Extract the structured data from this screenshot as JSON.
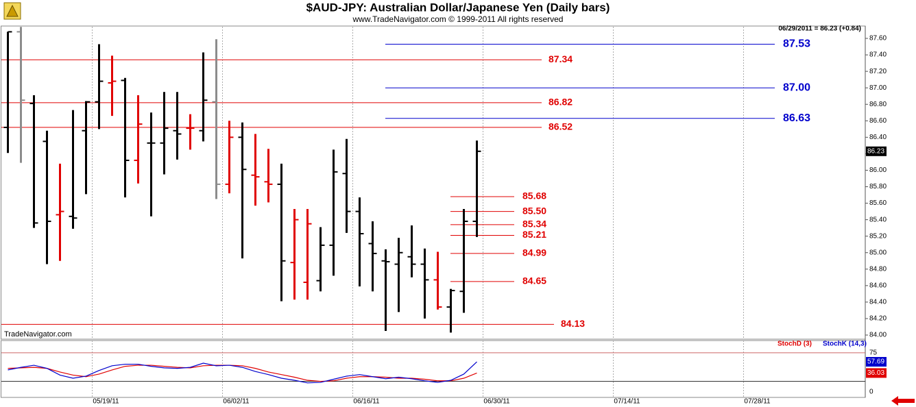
{
  "chart_data": [
    {
      "type": "ohlc",
      "title": "$AUD-JPY:  Australian Dollar/Japanese Yen  (Daily bars)",
      "subtitle": "www.TradeNavigator.com © 1999-2011 All rights reserved",
      "watermark": "TradeNavigator.com",
      "header_text": "06/29/2011 = 86.23 (+0.84)",
      "categories": [
        null,
        null,
        null,
        null,
        null,
        null,
        null,
        "05/19/11",
        null,
        null,
        null,
        null,
        null,
        null,
        null,
        null,
        null,
        "06/02/11",
        null,
        null,
        null,
        null,
        null,
        null,
        null,
        null,
        null,
        "06/16/11",
        null,
        null,
        null,
        null,
        null,
        null,
        null,
        null,
        null,
        "06/30/11",
        null,
        null,
        null,
        null,
        null,
        null,
        null,
        null,
        null,
        "07/14/11",
        null,
        null,
        null,
        null,
        null,
        null,
        null,
        null,
        null,
        "07/28/11",
        null,
        null,
        null,
        null,
        null,
        null,
        null,
        null
      ],
      "open": [
        86.52,
        87.68,
        86.81,
        86.35,
        85.46,
        85.44,
        86.48,
        86.83,
        87.06,
        87.09,
        86.12,
        86.33,
        86.33,
        86.48,
        86.51,
        86.48,
        86.83,
        85.83,
        86.4,
        85.94,
        85.86,
        85.83,
        84.88,
        84.64,
        84.66,
        85.09,
        85.96,
        85.5,
        85.11,
        84.9,
        84.86,
        84.95,
        84.86,
        84.67,
        84.34,
        84.53,
        85.38,
        null,
        null,
        null,
        null,
        null,
        null,
        null,
        null,
        null,
        null,
        null,
        null,
        null,
        null,
        null,
        null,
        null,
        null,
        null,
        null,
        null,
        null,
        null,
        null,
        null,
        null,
        null,
        null,
        null
      ],
      "high": [
        87.68,
        87.74,
        86.91,
        86.48,
        86.08,
        86.73,
        86.84,
        87.53,
        87.39,
        87.12,
        86.91,
        86.7,
        86.95,
        86.95,
        86.68,
        87.43,
        87.59,
        86.6,
        86.58,
        86.44,
        86.26,
        86.08,
        85.53,
        85.53,
        85.31,
        86.25,
        86.38,
        85.67,
        85.38,
        85.04,
        85.18,
        85.33,
        85.05,
        85.01,
        84.56,
        85.53,
        86.36,
        null,
        null,
        null,
        null,
        null,
        null,
        null,
        null,
        null,
        null,
        null,
        null,
        null,
        null,
        null,
        null,
        null,
        null,
        null,
        null,
        null,
        null,
        null,
        null,
        null,
        null,
        null,
        null,
        null
      ],
      "low": [
        86.21,
        86.09,
        85.3,
        84.86,
        84.9,
        85.29,
        85.71,
        86.5,
        86.66,
        85.67,
        85.84,
        85.44,
        85.95,
        86.13,
        86.25,
        86.35,
        85.65,
        85.72,
        84.93,
        85.57,
        85.61,
        84.41,
        84.43,
        84.43,
        84.53,
        84.72,
        85.24,
        84.59,
        84.53,
        84.05,
        84.28,
        84.7,
        84.2,
        84.31,
        84.03,
        84.27,
        85.19,
        null,
        null,
        null,
        null,
        null,
        null,
        null,
        null,
        null,
        null,
        null,
        null,
        null,
        null,
        null,
        null,
        null,
        null,
        null,
        null,
        null,
        null,
        null,
        null,
        null,
        null,
        null,
        null,
        null
      ],
      "close": [
        87.68,
        86.85,
        85.36,
        85.38,
        85.5,
        85.42,
        86.83,
        87.08,
        87.08,
        86.12,
        86.56,
        86.33,
        86.51,
        86.44,
        86.51,
        86.85,
        85.83,
        86.4,
        86.01,
        85.92,
        85.83,
        84.9,
        85.4,
        85.35,
        85.09,
        85.98,
        85.5,
        85.23,
        84.99,
        84.89,
        85.0,
        84.86,
        84.67,
        84.34,
        84.54,
        85.38,
        86.23,
        null,
        null,
        null,
        null,
        null,
        null,
        null,
        null,
        null,
        null,
        null,
        null,
        null,
        null,
        null,
        null,
        null,
        null,
        null,
        null,
        null,
        null,
        null,
        null,
        null,
        null,
        null,
        null,
        null
      ],
      "bar_colors": [
        "#000000",
        "#8c8c8c",
        "#000000",
        "#000000",
        "#e00000",
        "#000000",
        "#000000",
        "#000000",
        "#e00000",
        "#000000",
        "#e00000",
        "#000000",
        "#000000",
        "#000000",
        "#e00000",
        "#000000",
        "#8c8c8c",
        "#e00000",
        "#000000",
        "#e00000",
        "#e00000",
        "#000000",
        "#e00000",
        "#e00000",
        "#000000",
        "#000000",
        "#000000",
        "#000000",
        "#000000",
        "#000000",
        "#000000",
        "#000000",
        "#000000",
        "#e00000",
        "#000000",
        "#000000",
        "#000000",
        null,
        null,
        null,
        null,
        null,
        null,
        null,
        null,
        null,
        null,
        null,
        null,
        null,
        null,
        null,
        null,
        null,
        null,
        null,
        null,
        null,
        null,
        null,
        null,
        null,
        null,
        null,
        null,
        null
      ],
      "ylim": [
        83.95,
        87.75
      ],
      "yticks": [
        {
          "value": 84,
          "label": "84.00"
        },
        {
          "value": 84.2,
          "label": "84.20"
        },
        {
          "value": 84.4,
          "label": "84.40"
        },
        {
          "value": 84.6,
          "label": "84.60"
        },
        {
          "value": 84.8,
          "label": "84.80"
        },
        {
          "value": 85,
          "label": "85.00"
        },
        {
          "value": 85.2,
          "label": "85.20"
        },
        {
          "value": 85.4,
          "label": "85.40"
        },
        {
          "value": 85.6,
          "label": "85.60"
        },
        {
          "value": 85.8,
          "label": "85.80"
        },
        {
          "value": 86,
          "label": "86.00"
        },
        {
          "value": 86.2,
          "label": "86.20"
        },
        {
          "value": 86.4,
          "label": "86.40"
        },
        {
          "value": 86.6,
          "label": "86.60"
        },
        {
          "value": 86.8,
          "label": "86.80"
        },
        {
          "value": 87,
          "label": "87.00"
        },
        {
          "value": 87.2,
          "label": "87.20"
        },
        {
          "value": 87.4,
          "label": "87.40"
        },
        {
          "value": 87.6,
          "label": "87.60"
        }
      ],
      "grid": true,
      "levels": [
        {
          "color": "#e00000",
          "values": [
            87.34,
            86.82,
            86.52
          ]
        },
        {
          "color": "#e00000",
          "values": [
            84.13
          ]
        },
        {
          "color": "#e00000",
          "values": [
            85.68,
            85.5,
            85.34,
            85.21,
            84.99,
            84.65
          ],
          "value_labels": [
            "85.68",
            "85.50",
            "85.34",
            "85.21",
            "84.99",
            "84.65"
          ]
        },
        {
          "color": "#0000cc",
          "values": [
            87.53,
            87,
            86.63
          ],
          "value_labels": [
            "87.53",
            "87.00",
            "86.63"
          ]
        }
      ]
    },
    {
      "type": "line",
      "series": [
        {
          "name": "StochD (3)",
          "color": "#e00000",
          "values": [
            45,
            46,
            47,
            45,
            38,
            32,
            29,
            34,
            42,
            49,
            51,
            51,
            49,
            47,
            46,
            50,
            51,
            51,
            50,
            45,
            38,
            33,
            28,
            22,
            20,
            21,
            26,
            29,
            29,
            28,
            26,
            26,
            24,
            21,
            21,
            26,
            36.03,
            null,
            null,
            null,
            null,
            null,
            null,
            null,
            null,
            null,
            null,
            null,
            null,
            null,
            null,
            null,
            null,
            null,
            null,
            null,
            null,
            null,
            null,
            null,
            null,
            null,
            null,
            null,
            null,
            null
          ]
        },
        {
          "name": "StochK (14,3)",
          "color": "#0000cc",
          "values": [
            42,
            47,
            51,
            45,
            32,
            26,
            30,
            41,
            50,
            53,
            53,
            49,
            46,
            45,
            47,
            55,
            50,
            51,
            47,
            39,
            33,
            26,
            22,
            17,
            18,
            24,
            30,
            33,
            29,
            25,
            28,
            25,
            21,
            18,
            22,
            34,
            57.69,
            null,
            null,
            null,
            null,
            null,
            null,
            null,
            null,
            null,
            null,
            null,
            null,
            null,
            null,
            null,
            null,
            null,
            null,
            null,
            null,
            null,
            null,
            null,
            null,
            null,
            null,
            null,
            null,
            null
          ]
        }
      ],
      "ylim": [
        -11,
        100
      ],
      "yticks": [
        0,
        75
      ],
      "hlines": [
        75,
        20
      ],
      "grid": true
    }
  ]
}
